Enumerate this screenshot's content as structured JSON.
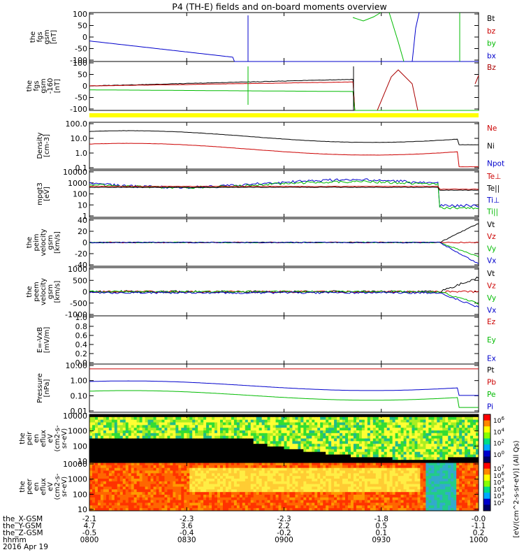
{
  "title": "P4 (TH-E) fields and on-board moments overview",
  "chart_data": [
    {
      "id": "fgs",
      "type": "line",
      "ylabel": [
        "the",
        "fgs",
        "gsm",
        "[nT]"
      ],
      "yticks": [
        "100",
        "50",
        "0",
        "-50",
        "-100"
      ],
      "ylim": [
        -100,
        100
      ],
      "legend": [
        {
          "name": "Bt",
          "color": "#000000"
        },
        {
          "name": "bz",
          "color": "#cc0000"
        },
        {
          "name": "by",
          "color": "#00bb00"
        },
        {
          "name": "bx",
          "color": "#0000cc"
        }
      ]
    },
    {
      "id": "fgs_b",
      "type": "line",
      "ylabel": [
        "the",
        "fgs",
        "gsm",
        "-160",
        "[nT]"
      ],
      "yticks": [
        "100",
        "50",
        "0",
        "-50",
        "-100"
      ],
      "ylim": [
        -130,
        100
      ],
      "legend": [
        {
          "name": "Bz",
          "color": "#aa0000"
        }
      ]
    },
    {
      "id": "density",
      "type": "line",
      "scale": "log",
      "ylabel": [
        "Density",
        "[cm-3]"
      ],
      "yticks": [
        "100.0",
        "10.0",
        "1.0",
        "0.1"
      ],
      "legend": [
        {
          "name": "Ne",
          "color": "#cc0000"
        },
        {
          "name": "Ni",
          "color": "#000000"
        },
        {
          "name": "Npot",
          "color": "#0000cc"
        }
      ]
    },
    {
      "id": "temp",
      "type": "line",
      "scale": "log",
      "ylabel": [
        "mpgt3",
        "[eV]"
      ],
      "yticks": [
        "10000",
        "1000",
        "100",
        "10",
        "1"
      ],
      "legend": [
        {
          "name": "Te⊥",
          "color": "#cc0000"
        },
        {
          "name": "Te||",
          "color": "#000000"
        },
        {
          "name": "Ti⊥",
          "color": "#0000cc"
        },
        {
          "name": "Ti||",
          "color": "#00bb00"
        }
      ]
    },
    {
      "id": "peim",
      "type": "line",
      "ylabel": [
        "the",
        "peim",
        "velocity",
        "gsm",
        "[km/s]"
      ],
      "yticks": [
        "40",
        "20",
        "0",
        "-20",
        "-40"
      ],
      "legend": [
        {
          "name": "Vt",
          "color": "#000000"
        },
        {
          "name": "Vz",
          "color": "#cc0000"
        },
        {
          "name": "Vy",
          "color": "#00bb00"
        },
        {
          "name": "Vx",
          "color": "#0000cc"
        }
      ]
    },
    {
      "id": "peem",
      "type": "line",
      "ylabel": [
        "the",
        "peem",
        "velocity",
        "gsm",
        "[km/s]"
      ],
      "yticks": [
        "1000",
        "500",
        "0",
        "-500",
        "-1000"
      ],
      "legend": [
        {
          "name": "Vt",
          "color": "#000000"
        },
        {
          "name": "Vz",
          "color": "#cc0000"
        },
        {
          "name": "Vy",
          "color": "#00bb00"
        },
        {
          "name": "Vx",
          "color": "#0000cc"
        }
      ]
    },
    {
      "id": "efield",
      "type": "line",
      "ylabel": [
        "E=-VxB",
        "[mV/m]"
      ],
      "yticks": [
        "1.0",
        "0.8",
        "0.6",
        "0.4",
        "0.2",
        "0.0"
      ],
      "legend": [
        {
          "name": "Ez",
          "color": "#cc0000"
        },
        {
          "name": "Ey",
          "color": "#00bb00"
        },
        {
          "name": "Ex",
          "color": "#0000cc"
        }
      ]
    },
    {
      "id": "pressure",
      "type": "line",
      "scale": "log",
      "ylabel": [
        "Pressure",
        "[nPa]"
      ],
      "yticks": [
        "10.00",
        "1.00",
        "0.10",
        "0.01"
      ],
      "legend": [
        {
          "name": "Pt",
          "color": "#000000"
        },
        {
          "name": "Pb",
          "color": "#cc0000"
        },
        {
          "name": "Pe",
          "color": "#00bb00"
        },
        {
          "name": "Pi",
          "color": "#0000cc"
        }
      ]
    },
    {
      "id": "peir",
      "type": "heatmap",
      "ylabel": [
        "the",
        "peir",
        "en",
        "eflux",
        "eV",
        "(cm2-s-",
        "sr-eV)"
      ],
      "yticks": [
        "10000",
        "1000",
        "100",
        "10"
      ],
      "colorbar": [
        "10^6",
        "10^4",
        "10^2",
        "10^0"
      ]
    },
    {
      "id": "peer",
      "type": "heatmap",
      "ylabel": [
        "the",
        "peer",
        "en",
        "eflux",
        "eV",
        "(cm2-s-",
        "sr-eV)"
      ],
      "yticks": [
        "10000",
        "1000",
        "100",
        "10"
      ],
      "colorbar": [
        "10^7",
        "10^6",
        "10^5",
        "10^4",
        "10^3",
        "10^2"
      ]
    }
  ],
  "colorbar_label": "[eV/(cm^2-s-sr-eV)] (All Qs)",
  "xaxis": {
    "rows": [
      {
        "label": "the_X-GSM",
        "values": [
          "-2.1",
          "-2.3",
          "-2.3",
          "-1.8",
          "-0.0"
        ]
      },
      {
        "label": "the_Y-GSM",
        "values": [
          "4.7",
          "3.6",
          "2.2",
          "0.5",
          "-1.1"
        ]
      },
      {
        "label": "the_Z-GSM",
        "values": [
          "-0.5",
          "-0.4",
          "-0.2",
          "0.1",
          "0.2"
        ]
      },
      {
        "label": "hhmm",
        "values": [
          "0800",
          "0830",
          "0900",
          "0930",
          "1000"
        ]
      }
    ],
    "date": "2016 Apr 19"
  }
}
